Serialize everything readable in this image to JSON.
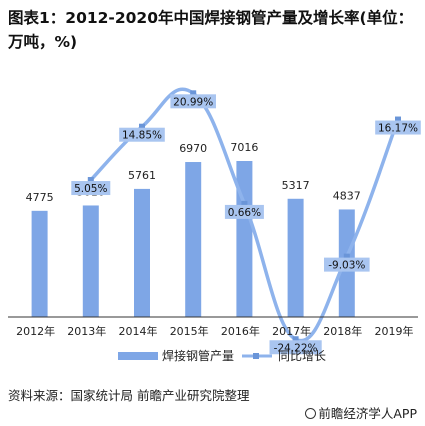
{
  "title": "图表1：2012-2020年中国焊接钢管产量及增长率(单位：万吨，%)",
  "source": "资料来源：国家统计局 前瞻产业研究院整理",
  "brand": "前瞻经济学人APP",
  "colors": {
    "bar": "#7EA6E6",
    "line": "#8EB3EC",
    "label_bg": "#A9C5F0",
    "axis": "#333333"
  },
  "chart_data": {
    "type": "bar",
    "categories": [
      "2012年",
      "2013年",
      "2014年",
      "2015年",
      "2016年",
      "2017年",
      "2018年",
      "2019年"
    ],
    "series": [
      {
        "name": "焊接钢管产量",
        "type": "bar",
        "values": [
          4775,
          5016,
          5761,
          6970,
          7016,
          5317,
          4837,
          null
        ],
        "labels": [
          "4775",
          "5016",
          "5761",
          "6970",
          "7016",
          "5317",
          "4837",
          ""
        ]
      },
      {
        "name": "同比增长",
        "type": "line",
        "values": [
          null,
          5.05,
          14.85,
          20.99,
          0.66,
          -24.22,
          -9.03,
          16.17
        ],
        "labels": [
          "",
          "5.05%",
          "14.85%",
          "20.99%",
          "0.66%",
          "-24.22%",
          "-9.03%",
          "16.17%"
        ]
      }
    ],
    "legend": [
      "焊接钢管产量",
      "同比增长"
    ],
    "legend_position": "bottom"
  }
}
